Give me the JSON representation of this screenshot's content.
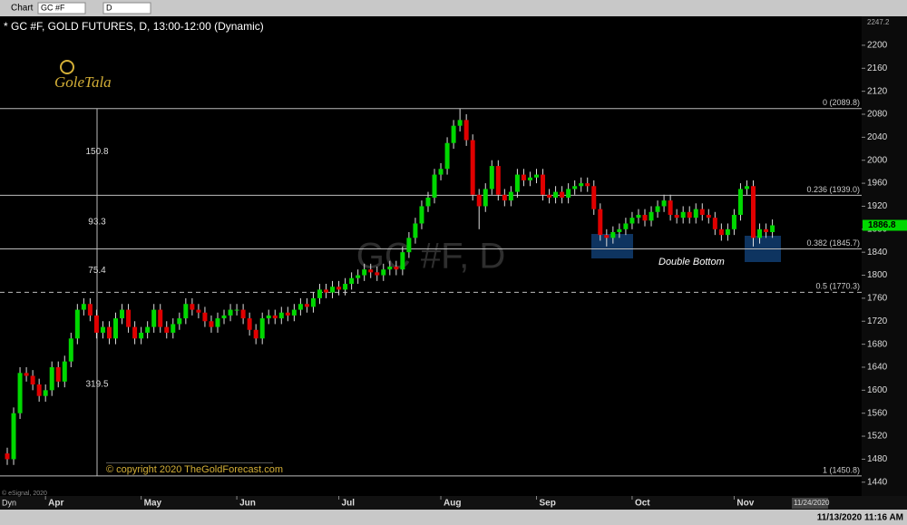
{
  "toolbar": {
    "title": "Chart",
    "symbol": "GC #F",
    "interval": "D"
  },
  "footer": {
    "vendor": "© eSignal, 2020",
    "mode": "Dyn",
    "future_date": "11/24/2020",
    "timestamp": "11/13/2020 11:16 AM"
  },
  "logo": "GoleTala",
  "chart_data": {
    "type": "candlestick",
    "title": "* GC #F, GOLD FUTURES, D, 13:00-12:00 (Dynamic)",
    "watermark": "GC #F, D",
    "annotation": "Double Bottom",
    "copyright": "© copyright 2020 TheGoldForecast.com",
    "categories": [
      null,
      null,
      null,
      null,
      null,
      null,
      "Apr",
      null,
      null,
      null,
      null,
      null,
      null,
      null,
      null,
      null,
      null,
      null,
      null,
      null,
      null,
      "May",
      null,
      null,
      null,
      null,
      null,
      null,
      null,
      null,
      null,
      null,
      null,
      null,
      null,
      null,
      "Jun",
      null,
      null,
      null,
      null,
      null,
      null,
      null,
      null,
      null,
      null,
      null,
      null,
      null,
      null,
      null,
      "Jul",
      null,
      null,
      null,
      null,
      null,
      null,
      null,
      null,
      null,
      null,
      null,
      null,
      null,
      null,
      null,
      "Aug",
      null,
      null,
      null,
      null,
      null,
      null,
      null,
      null,
      null,
      null,
      null,
      null,
      null,
      null,
      "Sep",
      null,
      null,
      null,
      null,
      null,
      null,
      null,
      null,
      null,
      null,
      null,
      null,
      null,
      null,
      "Oct",
      null,
      null,
      null,
      null,
      null,
      null,
      null,
      null,
      null,
      null,
      null,
      null,
      null,
      null,
      null,
      "Nov",
      null,
      null,
      null,
      null,
      null,
      null
    ],
    "open": [
      1490,
      1480,
      1560,
      1630,
      1625,
      1610,
      1590,
      1600,
      1640,
      1615,
      1650,
      1690,
      1740,
      1750,
      1730,
      1700,
      1710,
      1690,
      1725,
      1740,
      1710,
      1690,
      1700,
      1710,
      1740,
      1710,
      1700,
      1715,
      1725,
      1750,
      1740,
      1735,
      1720,
      1710,
      1725,
      1730,
      1740,
      1740,
      1725,
      1705,
      1690,
      1725,
      1730,
      1725,
      1735,
      1730,
      1740,
      1750,
      1745,
      1760,
      1775,
      1770,
      1780,
      1775,
      1785,
      1795,
      1800,
      1810,
      1805,
      1800,
      1810,
      1815,
      1810,
      1840,
      1865,
      1890,
      1920,
      1935,
      1975,
      1985,
      2030,
      2060,
      2070,
      2035,
      1940,
      1920,
      1950,
      1990,
      1940,
      1930,
      1945,
      1975,
      1965,
      1970,
      1975,
      1940,
      1935,
      1945,
      1935,
      1950,
      1955,
      1960,
      1955,
      1915,
      1870,
      1865,
      1875,
      1880,
      1890,
      1900,
      1905,
      1895,
      1910,
      1920,
      1930,
      1905,
      1900,
      1910,
      1900,
      1915,
      1905,
      1900,
      1880,
      1870,
      1880,
      1905,
      1950,
      1955,
      1865,
      1880,
      1875
    ],
    "high": [
      1500,
      1570,
      1640,
      1640,
      1635,
      1620,
      1610,
      1650,
      1650,
      1660,
      1700,
      1750,
      1760,
      1760,
      1740,
      1720,
      1720,
      1735,
      1750,
      1750,
      1720,
      1710,
      1720,
      1750,
      1750,
      1720,
      1725,
      1735,
      1760,
      1760,
      1750,
      1745,
      1730,
      1735,
      1740,
      1750,
      1750,
      1750,
      1735,
      1715,
      1735,
      1740,
      1740,
      1745,
      1745,
      1750,
      1760,
      1760,
      1770,
      1785,
      1785,
      1790,
      1790,
      1795,
      1805,
      1810,
      1820,
      1820,
      1815,
      1820,
      1825,
      1825,
      1850,
      1875,
      1900,
      1930,
      1945,
      1985,
      1995,
      2040,
      2070,
      2089.8,
      2080,
      2045,
      1950,
      1960,
      2000,
      2000,
      1950,
      1955,
      1985,
      1985,
      1980,
      1985,
      1985,
      1950,
      1955,
      1955,
      1960,
      1965,
      1970,
      1970,
      1965,
      1925,
      1880,
      1885,
      1890,
      1900,
      1910,
      1915,
      1915,
      1920,
      1930,
      1940,
      1940,
      1915,
      1920,
      1920,
      1925,
      1925,
      1915,
      1910,
      1890,
      1890,
      1915,
      1960,
      1965,
      1965,
      1890,
      1890,
      1897
    ],
    "low": [
      1470,
      1470,
      1550,
      1615,
      1600,
      1580,
      1580,
      1590,
      1605,
      1605,
      1640,
      1680,
      1730,
      1720,
      1690,
      1690,
      1680,
      1680,
      1715,
      1700,
      1680,
      1680,
      1690,
      1700,
      1700,
      1690,
      1690,
      1705,
      1715,
      1730,
      1725,
      1710,
      1700,
      1700,
      1715,
      1720,
      1730,
      1715,
      1695,
      1680,
      1680,
      1715,
      1715,
      1715,
      1720,
      1720,
      1730,
      1735,
      1735,
      1750,
      1760,
      1760,
      1765,
      1765,
      1775,
      1785,
      1790,
      1795,
      1790,
      1790,
      1800,
      1800,
      1800,
      1830,
      1855,
      1880,
      1910,
      1925,
      1965,
      1975,
      2020,
      2050,
      2025,
      1930,
      1880,
      1910,
      1940,
      1930,
      1920,
      1920,
      1935,
      1955,
      1955,
      1960,
      1930,
      1925,
      1925,
      1925,
      1925,
      1940,
      1945,
      1945,
      1905,
      1860,
      1850,
      1855,
      1865,
      1870,
      1880,
      1890,
      1885,
      1885,
      1900,
      1910,
      1895,
      1890,
      1890,
      1890,
      1890,
      1895,
      1890,
      1870,
      1860,
      1860,
      1870,
      1895,
      1940,
      1850,
      1855,
      1865,
      1865
    ],
    "close": [
      1480,
      1560,
      1630,
      1625,
      1610,
      1590,
      1600,
      1640,
      1615,
      1650,
      1690,
      1740,
      1750,
      1730,
      1700,
      1710,
      1690,
      1725,
      1740,
      1710,
      1690,
      1700,
      1710,
      1740,
      1710,
      1700,
      1715,
      1725,
      1750,
      1740,
      1735,
      1720,
      1710,
      1725,
      1730,
      1740,
      1740,
      1725,
      1705,
      1690,
      1725,
      1730,
      1725,
      1735,
      1730,
      1740,
      1750,
      1745,
      1760,
      1775,
      1770,
      1780,
      1775,
      1785,
      1795,
      1800,
      1810,
      1805,
      1800,
      1810,
      1815,
      1810,
      1840,
      1865,
      1890,
      1920,
      1935,
      1975,
      1985,
      2030,
      2060,
      2070,
      2035,
      1940,
      1920,
      1950,
      1990,
      1940,
      1930,
      1945,
      1975,
      1965,
      1970,
      1975,
      1940,
      1935,
      1945,
      1935,
      1950,
      1955,
      1960,
      1955,
      1915,
      1870,
      1865,
      1875,
      1880,
      1890,
      1900,
      1905,
      1895,
      1910,
      1920,
      1930,
      1905,
      1900,
      1910,
      1900,
      1915,
      1905,
      1900,
      1880,
      1870,
      1880,
      1905,
      1950,
      1955,
      1865,
      1880,
      1875,
      1886.8
    ],
    "up_color": "#00d800",
    "down_color": "#e00000",
    "ylim": [
      1416,
      2247.2
    ],
    "yticks": [
      1440,
      1480,
      1520,
      1560,
      1600,
      1640,
      1680,
      1720,
      1760,
      1800,
      1840,
      1880,
      1920,
      1960,
      2000,
      2040,
      2080,
      2120,
      2160,
      2200
    ],
    "levels": [
      {
        "label": "0 (2089.8)",
        "value": 2089.8
      },
      {
        "label": "0.236 (1939.0)",
        "value": 1939.0
      },
      {
        "label": "0.382 (1845.7)",
        "value": 1845.7
      },
      {
        "label": "0.5 (1770.3)",
        "value": 1770.3,
        "dashed": true
      },
      {
        "label": "1 (1450.8)",
        "value": 1450.8
      }
    ],
    "measurements": [
      150.8,
      93.3,
      75.4,
      319.5
    ]
  }
}
